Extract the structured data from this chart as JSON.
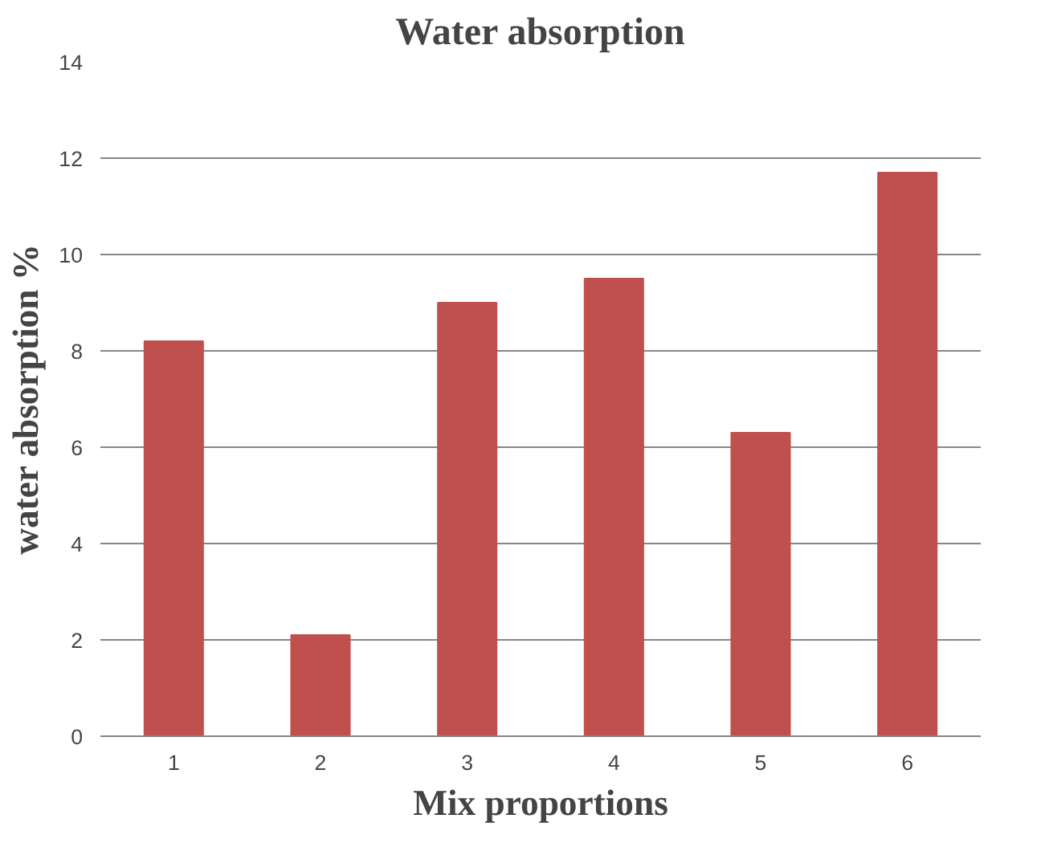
{
  "chart_data": {
    "type": "bar",
    "title": "Water absorption",
    "xlabel": "Mix proportions",
    "ylabel": "water absorption %",
    "categories": [
      "1",
      "2",
      "3",
      "4",
      "5",
      "6"
    ],
    "values": [
      8.2,
      2.1,
      9.0,
      9.5,
      6.3,
      11.7
    ],
    "color": "#c0504d",
    "ylim": [
      0,
      14
    ],
    "yticks": [
      0,
      2,
      4,
      6,
      8,
      10,
      12,
      14
    ],
    "grid": "y"
  }
}
